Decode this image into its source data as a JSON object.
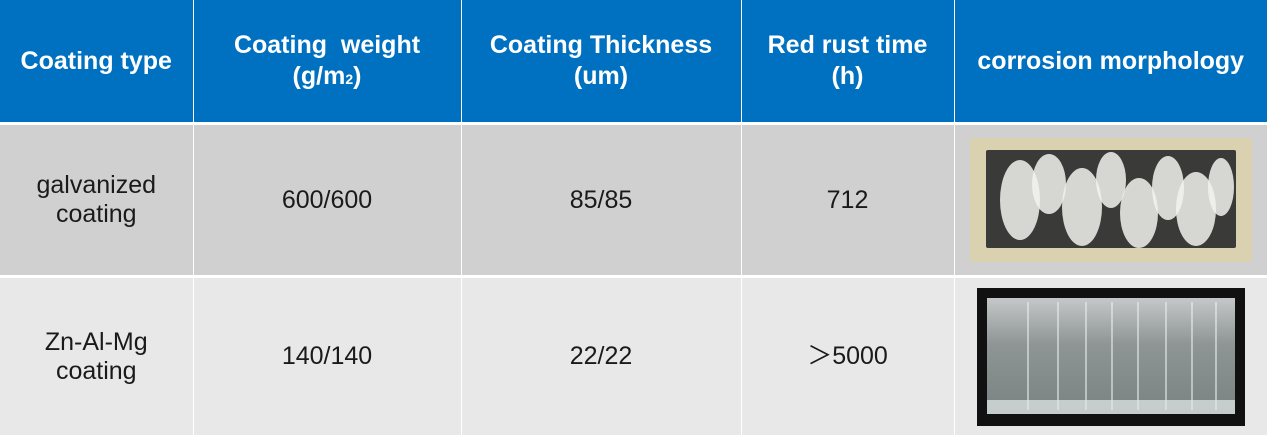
{
  "table": {
    "headers": {
      "coating_type": "Coating type",
      "coating_weight": "Coating  weight",
      "coating_weight_unit_base": "(g/m",
      "coating_weight_unit_sup": "2",
      "coating_weight_unit_end": ")",
      "coating_thickness": "Coating Thickness",
      "coating_thickness_unit": "(um)",
      "red_rust_time": "Red rust time",
      "red_rust_time_unit": "(h)",
      "corrosion_morphology": "corrosion morphology"
    },
    "rows": [
      {
        "type_line1": "galvanized",
        "type_line2": "coating",
        "weight": "600/600",
        "thickness": "85/85",
        "rust_time": "712"
      },
      {
        "type_line1": "Zn-Al-Mg",
        "type_line2": "coating",
        "weight": "140/140",
        "thickness": "22/22",
        "rust_time": "＞5000"
      }
    ]
  },
  "colors": {
    "header_bg": "#0070c0",
    "row1_bg": "#d0d0d0",
    "row2_bg": "#e8e8e8"
  }
}
